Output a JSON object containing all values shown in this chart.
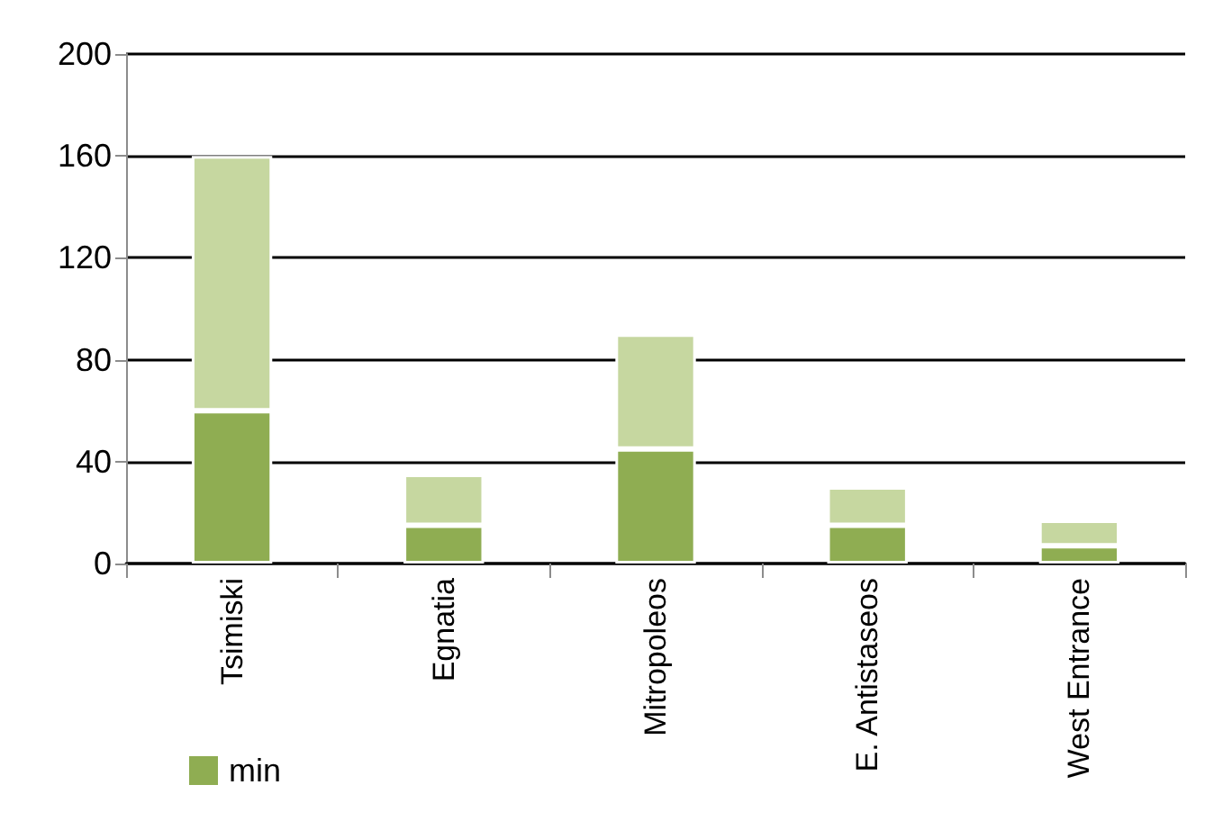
{
  "chart_data": {
    "type": "bar",
    "stacked": true,
    "categories": [
      "Tsimiski",
      "Egnatia",
      "Mitropoleos",
      "E. Antistaseos",
      "West Entrance"
    ],
    "series": [
      {
        "name": "min",
        "color": "#8fad52",
        "values": [
          60,
          15,
          45,
          15,
          7
        ]
      },
      {
        "color": "#c6d7a0",
        "values": [
          100,
          20,
          45,
          15,
          10
        ]
      }
    ],
    "ylim": [
      0,
      200
    ],
    "yticks": [
      0,
      40,
      80,
      120,
      160,
      200
    ],
    "grid": "y",
    "legend": "bottom left"
  }
}
